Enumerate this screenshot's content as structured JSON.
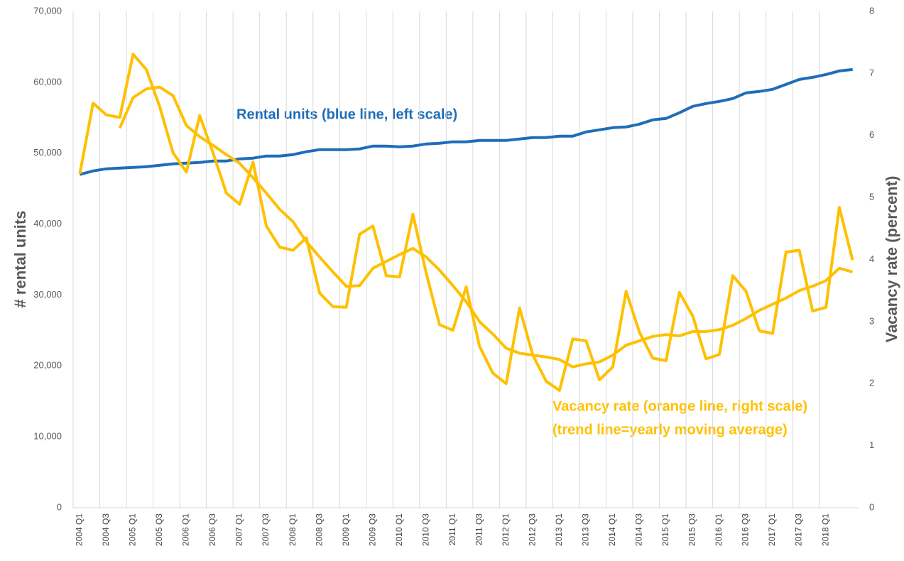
{
  "chart_data": {
    "type": "line",
    "categories": [
      "2004 Q1",
      null,
      "2004 Q3",
      null,
      "2005 Q1",
      null,
      "2005 Q3",
      null,
      "2006 Q1",
      null,
      "2006 Q3",
      null,
      "2007 Q1",
      null,
      "2007 Q3",
      null,
      "2008 Q1",
      null,
      "2008 Q3",
      null,
      "2009 Q1",
      null,
      "2009 Q3",
      null,
      "2010 Q1",
      null,
      "2010 Q3",
      null,
      "2011 Q1",
      null,
      "2011 Q3",
      null,
      "2012 Q1",
      null,
      "2012 Q3",
      null,
      "2013 Q1",
      null,
      "2013 Q3",
      null,
      "2014 Q1",
      null,
      "2014 Q3",
      null,
      "2015 Q1",
      null,
      "2015 Q3",
      null,
      "2016 Q1",
      null,
      "2016 Q3",
      null,
      "2017 Q1",
      null,
      "2017 Q3",
      null,
      "2018 Q1",
      null,
      null
    ],
    "series": [
      {
        "color": "#1f6db8",
        "values": [
          47000,
          47500,
          47800,
          47900,
          48000,
          48100,
          48300,
          48500,
          48600,
          48700,
          48900,
          48900,
          49200,
          49300,
          49600,
          49600,
          49800,
          50200,
          50500,
          50500,
          50500,
          50600,
          51000,
          51000,
          50900,
          51000,
          51300,
          51400,
          51600,
          51600,
          51800,
          51800,
          51800,
          52000,
          52200,
          52200,
          52400,
          52400,
          53000,
          53300,
          53600,
          53700,
          54100,
          54700,
          54900,
          55700,
          56600,
          57000,
          57300,
          57700,
          58500,
          58700,
          59000,
          59700,
          60400,
          60700,
          61100,
          61600,
          61800
        ]
      },
      {
        "color": "#ffc000",
        "axis": "y2",
        "values": [
          5.38,
          6.52,
          6.33,
          6.29,
          7.31,
          7.06,
          6.46,
          5.72,
          5.41,
          6.32,
          5.72,
          5.07,
          4.89,
          5.57,
          4.54,
          4.2,
          4.15,
          4.35,
          3.46,
          3.24,
          3.23,
          4.41,
          4.54,
          3.74,
          3.72,
          4.73,
          3.78,
          2.95,
          2.86,
          3.56,
          2.6,
          2.17,
          2.0,
          3.22,
          2.46,
          2.04,
          1.89,
          2.72,
          2.69,
          2.06,
          2.27,
          3.49,
          2.83,
          2.41,
          2.37,
          3.47,
          3.09,
          2.4,
          2.47,
          3.74,
          3.49,
          2.85,
          2.81,
          4.12,
          4.15,
          3.17,
          3.23,
          4.84,
          3.99
        ]
      },
      {
        "color": "#ffc000",
        "axis": "y2",
        "values": [
          null,
          null,
          null,
          6.12,
          6.61,
          6.75,
          6.78,
          6.64,
          6.16,
          5.98,
          5.84,
          5.69,
          5.55,
          5.32,
          5.07,
          4.81,
          4.61,
          4.29,
          4.04,
          3.8,
          3.57,
          3.58,
          3.86,
          3.97,
          4.08,
          4.18,
          4.04,
          3.83,
          3.58,
          3.32,
          3.0,
          2.8,
          2.57,
          2.49,
          2.46,
          2.43,
          2.39,
          2.27,
          2.32,
          2.35,
          2.46,
          2.62,
          2.69,
          2.76,
          2.79,
          2.77,
          2.84,
          2.84,
          2.87,
          2.94,
          3.05,
          3.18,
          3.28,
          3.38,
          3.5,
          3.57,
          3.66,
          3.86,
          3.8
        ]
      }
    ],
    "ylabel": "# rental units",
    "y2label": "Vacancy rate (percent)",
    "ylim": [
      0,
      70000
    ],
    "yticks": [
      0,
      {
        "value": 10000,
        "label": "10,000"
      },
      {
        "value": 20000,
        "label": "20,000"
      },
      {
        "value": 30000,
        "label": "30,000"
      },
      {
        "value": 40000,
        "label": "40,000"
      },
      {
        "value": 50000,
        "label": "50,000"
      },
      {
        "value": 60000,
        "label": "60,000"
      },
      {
        "value": 70000,
        "label": "70,000"
      }
    ],
    "y2lim": [
      0,
      8
    ],
    "y2ticks": [
      0,
      1,
      2,
      3,
      4,
      5,
      6,
      7,
      8
    ],
    "xgrid": true,
    "annotations": [
      "Rental units (blue line, left scale)",
      "Vacancy rate (orange line, right scale)",
      "(trend line=yearly moving average)"
    ]
  }
}
